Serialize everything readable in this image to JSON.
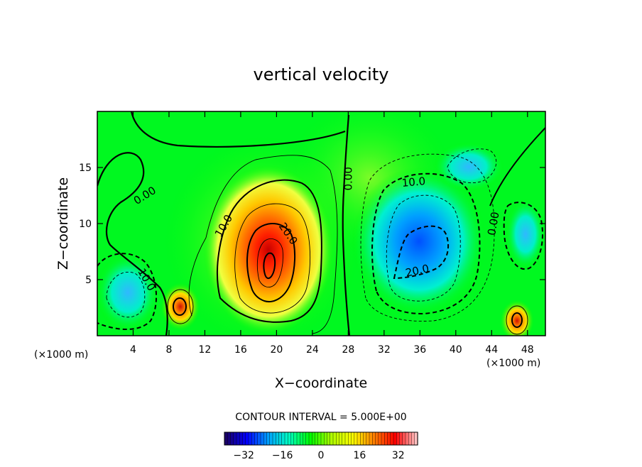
{
  "chart_data": {
    "type": "heatmap",
    "title": "vertical velocity",
    "xlabel": "X−coordinate",
    "ylabel": "Z−coordinate",
    "x_unit_label": "(×1000 m)",
    "xlim": [
      0,
      50
    ],
    "ylim": [
      0,
      20
    ],
    "x_ticks": [
      4,
      8,
      12,
      16,
      20,
      24,
      28,
      32,
      36,
      40,
      44,
      48
    ],
    "y_ticks": [
      5,
      10,
      15
    ],
    "contour_interval_text": "CONTOUR INTERVAL = 5.000E+00",
    "colorbar": {
      "range": [
        -40,
        40
      ],
      "ticks": [
        -32,
        -16,
        0,
        16,
        32
      ],
      "colors": [
        "#1a0066",
        "#0000ff",
        "#00a0ff",
        "#00ffc0",
        "#00ff00",
        "#b0ff00",
        "#ffff00",
        "#ff8000",
        "#ff0000",
        "#ffc0c0"
      ]
    },
    "features": [
      {
        "type": "updraft",
        "x": 19.5,
        "z": 6.5,
        "max": 30
      },
      {
        "type": "updraft",
        "x": 9.3,
        "z": 2.5,
        "max": 22
      },
      {
        "type": "updraft",
        "x": 46.5,
        "z": 1.5,
        "max": 20
      },
      {
        "type": "downdraft",
        "x": 36,
        "z": 8,
        "min": -22
      },
      {
        "type": "downdraft",
        "x": 3.5,
        "z": 3.5,
        "min": -10
      },
      {
        "type": "downdraft",
        "x": 47.5,
        "z": 8.5,
        "min": -10
      }
    ],
    "contour_labels": [
      {
        "text": "0.00",
        "x": 5.3,
        "z": 12.5,
        "angle": -32
      },
      {
        "text": "0.00",
        "x": 28,
        "z": 14,
        "angle": -90
      },
      {
        "text": "10.0",
        "x": 14.1,
        "z": 9.8,
        "angle": -60
      },
      {
        "text": "20.0",
        "x": 21.3,
        "z": 9.1,
        "angle": 55
      },
      {
        "text": "10.0",
        "x": 35.3,
        "z": 13.7,
        "angle": -5
      },
      {
        "text": "20.0",
        "x": 35.7,
        "z": 5.8,
        "angle": -12
      },
      {
        "text": "10.0",
        "x": 5.5,
        "z": 5,
        "angle": 60
      },
      {
        "text": "0.00",
        "x": 44.2,
        "z": 10,
        "angle": -80
      }
    ]
  }
}
